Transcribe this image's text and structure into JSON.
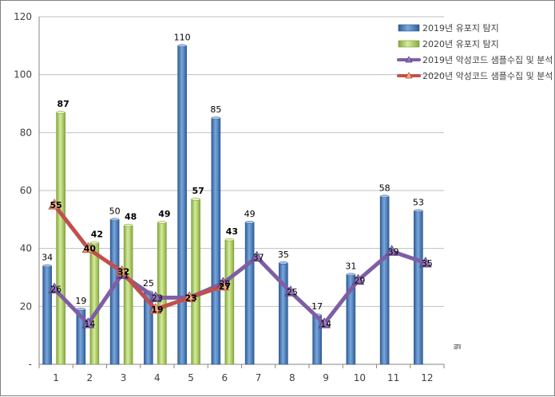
{
  "chart_data": {
    "type": "bar",
    "categories": [
      "1",
      "2",
      "3",
      "4",
      "5",
      "6",
      "7",
      "8",
      "9",
      "10",
      "11",
      "12"
    ],
    "ylim": [
      0,
      120
    ],
    "yticks": [
      0,
      20,
      40,
      60,
      80,
      100,
      120
    ],
    "ytick_labels": [
      "-",
      "20",
      "40",
      "60",
      "80",
      "100",
      "120"
    ],
    "grid": true,
    "legend_position": "top-right",
    "axis_side_note": "월",
    "series": [
      {
        "name": "2019년 유포지 탐지",
        "kind": "bar",
        "color": "#4f81bd",
        "values": [
          34,
          19,
          50,
          25,
          110,
          85,
          49,
          35,
          17,
          31,
          58,
          53
        ]
      },
      {
        "name": "2020년 유포지 탐지",
        "kind": "bar",
        "color": "#9bbb59",
        "values": [
          87,
          42,
          48,
          49,
          57,
          43,
          null,
          null,
          null,
          null,
          null,
          null
        ]
      },
      {
        "name": "2019년 악성코드 샘플수집 및 분석",
        "kind": "line",
        "color": "#7e5ea4",
        "values": [
          26,
          14,
          31,
          23,
          23,
          28,
          37,
          25,
          14,
          29,
          39,
          35
        ]
      },
      {
        "name": "2020년 악성코드 샘플수집 및 분석",
        "kind": "line",
        "color": "#c0504d",
        "values": [
          55,
          40,
          32,
          19,
          23,
          27,
          null,
          null,
          null,
          null,
          null,
          null
        ]
      }
    ]
  }
}
